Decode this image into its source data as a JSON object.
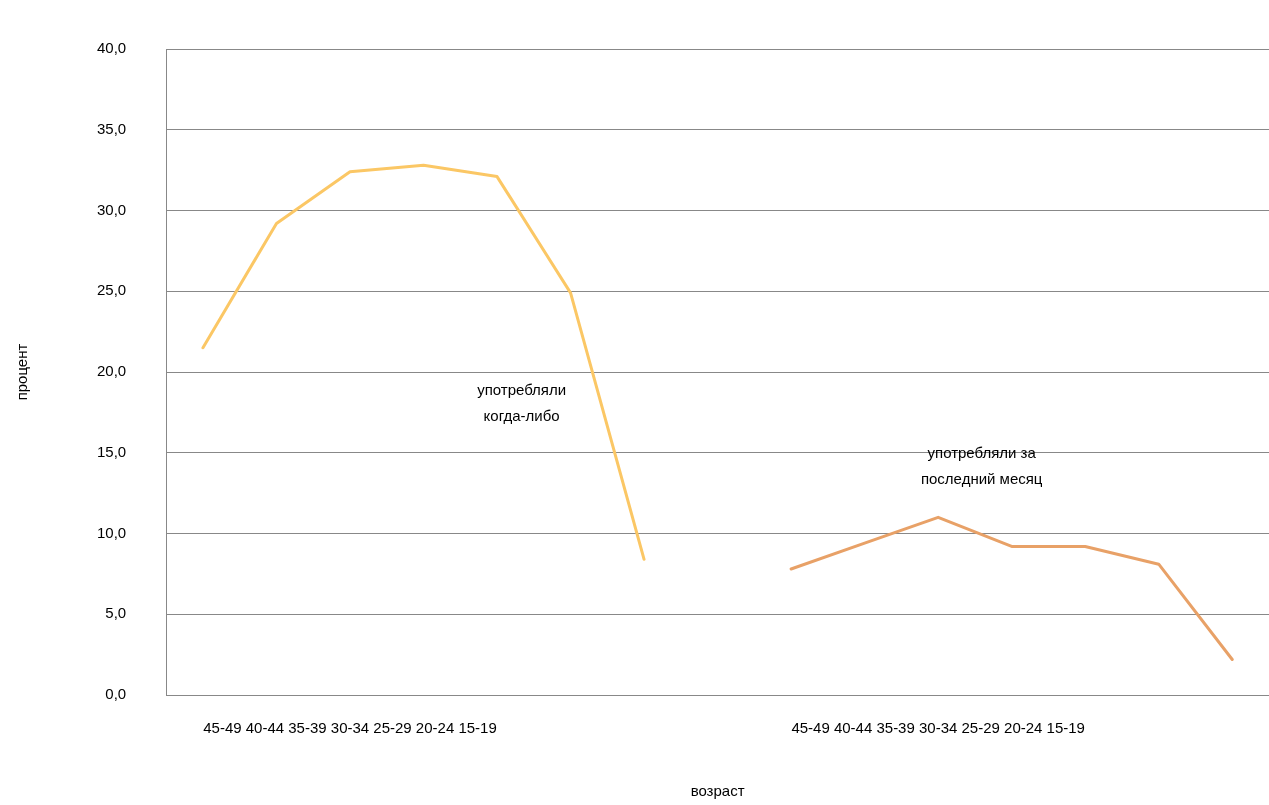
{
  "chart_data": {
    "type": "line",
    "xlabel": "возраст",
    "ylabel": "процент",
    "categories": [
      null,
      null,
      "45-49 40-44 35-39 30-34 25-29 20-24 15-19",
      null,
      null,
      null,
      null,
      null,
      null,
      null,
      "45-49 40-44 35-39 30-34 25-29 20-24 15-19",
      null,
      null,
      null,
      null
    ],
    "series": [
      {
        "name": "употребляли когда-либо",
        "color": "#fbc765",
        "values": [
          21.5,
          29.2,
          32.4,
          32.8,
          32.1,
          24.9,
          8.4,
          null,
          null,
          null,
          null,
          null,
          null,
          null,
          null
        ]
      },
      {
        "name": "употребляли за последний месяц",
        "color": "#e8a167",
        "values": [
          null,
          null,
          null,
          null,
          null,
          null,
          null,
          null,
          7.8,
          9.4,
          11.0,
          9.2,
          9.2,
          8.1,
          2.2
        ]
      }
    ],
    "ylim": [
      0,
      40
    ],
    "yticks": [
      {
        "value": 0,
        "label": "0,0"
      },
      {
        "value": 5,
        "label": "5,0"
      },
      {
        "value": 10,
        "label": "10,0"
      },
      {
        "value": 15,
        "label": "15,0"
      },
      {
        "value": 20,
        "label": "20,0"
      },
      {
        "value": 25,
        "label": "25,0"
      },
      {
        "value": 30,
        "label": "30,0"
      },
      {
        "value": 35,
        "label": "35,0"
      },
      {
        "value": 40,
        "label": "40,0"
      }
    ],
    "grid": "y",
    "legend": false,
    "marker": "none",
    "line_style": "solid"
  }
}
